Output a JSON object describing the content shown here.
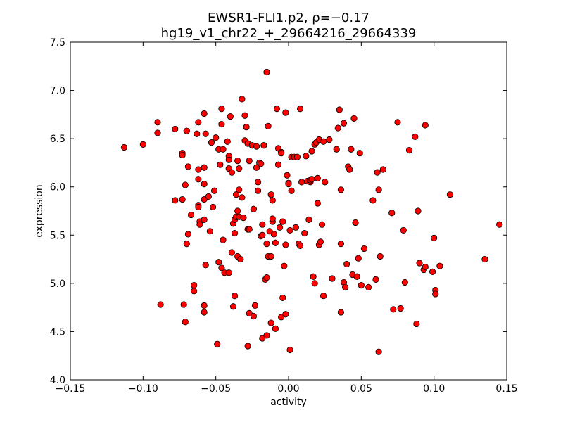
{
  "chart_data": {
    "type": "scatter",
    "title_line1": "EWSR1-FLI1.p2, ρ=−0.17",
    "title_line2": "hg19_v1_chr22_+_29664216_29664339",
    "xlabel": "activity",
    "ylabel": "expression",
    "xlim": [
      -0.15,
      0.15
    ],
    "ylim": [
      4.0,
      7.5
    ],
    "xticks": [
      -0.15,
      -0.1,
      -0.05,
      0.0,
      0.05,
      0.1,
      0.15
    ],
    "xtick_labels": [
      "−0.15",
      "−0.10",
      "−0.05",
      "0.00",
      "0.05",
      "0.10",
      "0.15"
    ],
    "yticks": [
      4.0,
      4.5,
      5.0,
      5.5,
      6.0,
      6.5,
      7.0,
      7.5
    ],
    "ytick_labels": [
      "4.0",
      "4.5",
      "5.0",
      "5.5",
      "6.0",
      "6.5",
      "7.0",
      "7.5"
    ],
    "grid": false,
    "marker_color": "#ff0000",
    "marker_edge": "#000000",
    "points": [
      [
        -0.113,
        6.41
      ],
      [
        -0.1,
        6.44
      ],
      [
        -0.09,
        6.67
      ],
      [
        -0.09,
        6.56
      ],
      [
        -0.088,
        4.78
      ],
      [
        -0.078,
        6.6
      ],
      [
        -0.078,
        5.86
      ],
      [
        -0.073,
        6.35
      ],
      [
        -0.073,
        6.33
      ],
      [
        -0.073,
        5.87
      ],
      [
        -0.072,
        4.78
      ],
      [
        -0.071,
        6.02
      ],
      [
        -0.071,
        4.6
      ],
      [
        -0.07,
        6.58
      ],
      [
        -0.07,
        5.41
      ],
      [
        -0.069,
        6.21
      ],
      [
        -0.069,
        5.51
      ],
      [
        -0.067,
        5.71
      ],
      [
        -0.065,
        4.98
      ],
      [
        -0.065,
        4.92
      ],
      [
        -0.063,
        6.55
      ],
      [
        -0.062,
        6.67
      ],
      [
        -0.062,
        6.18
      ],
      [
        -0.062,
        6.08
      ],
      [
        -0.062,
        5.81
      ],
      [
        -0.062,
        5.79
      ],
      [
        -0.061,
        5.64
      ],
      [
        -0.061,
        5.61
      ],
      [
        -0.058,
        6.76
      ],
      [
        -0.058,
        6.2
      ],
      [
        -0.058,
        6.03
      ],
      [
        -0.058,
        5.87
      ],
      [
        -0.058,
        5.66
      ],
      [
        -0.058,
        4.77
      ],
      [
        -0.058,
        4.7
      ],
      [
        -0.057,
        6.55
      ],
      [
        -0.057,
        5.19
      ],
      [
        -0.055,
        5.9
      ],
      [
        -0.054,
        5.54
      ],
      [
        -0.053,
        6.46
      ],
      [
        -0.052,
        5.79
      ],
      [
        -0.051,
        5.96
      ],
      [
        -0.05,
        6.51
      ],
      [
        -0.049,
        4.37
      ],
      [
        -0.048,
        6.39
      ],
      [
        -0.048,
        5.22
      ],
      [
        -0.047,
        6.23
      ],
      [
        -0.046,
        6.65
      ],
      [
        -0.046,
        5.16
      ],
      [
        -0.046,
        6.81
      ],
      [
        -0.045,
        6.39
      ],
      [
        -0.045,
        5.45
      ],
      [
        -0.044,
        5.11
      ],
      [
        -0.042,
        6.47
      ],
      [
        -0.041,
        6.32
      ],
      [
        -0.041,
        6.28
      ],
      [
        -0.041,
        6.19
      ],
      [
        -0.041,
        5.11
      ],
      [
        -0.04,
        6.73
      ],
      [
        -0.039,
        6.15
      ],
      [
        -0.039,
        5.32
      ],
      [
        -0.038,
        5.62
      ],
      [
        -0.038,
        4.76
      ],
      [
        -0.037,
        5.66
      ],
      [
        -0.037,
        5.52
      ],
      [
        -0.037,
        4.87
      ],
      [
        -0.036,
        5.92
      ],
      [
        -0.036,
        5.69
      ],
      [
        -0.035,
        5.75
      ],
      [
        -0.035,
        5.28
      ],
      [
        -0.035,
        6.27
      ],
      [
        -0.034,
        5.97
      ],
      [
        -0.034,
        6.19
      ],
      [
        -0.034,
        5.69
      ],
      [
        -0.033,
        5.25
      ],
      [
        -0.032,
        5.89
      ],
      [
        -0.032,
        6.91
      ],
      [
        -0.031,
        5.68
      ],
      [
        -0.03,
        6.48
      ],
      [
        -0.03,
        6.74
      ],
      [
        -0.029,
        6.62
      ],
      [
        -0.028,
        6.45
      ],
      [
        -0.028,
        4.35
      ],
      [
        -0.028,
        5.56
      ],
      [
        -0.027,
        6.27
      ],
      [
        -0.027,
        5.56
      ],
      [
        -0.027,
        4.69
      ],
      [
        -0.025,
        6.43
      ],
      [
        -0.024,
        4.66
      ],
      [
        -0.024,
        5.77
      ],
      [
        -0.023,
        4.77
      ],
      [
        -0.022,
        6.42
      ],
      [
        -0.022,
        6.2
      ],
      [
        -0.021,
        5.96
      ],
      [
        -0.021,
        6.05
      ],
      [
        -0.02,
        6.25
      ],
      [
        -0.019,
        6.24
      ],
      [
        -0.019,
        5.49
      ],
      [
        -0.018,
        5.61
      ],
      [
        -0.018,
        4.43
      ],
      [
        -0.018,
        5.5
      ],
      [
        -0.017,
        6.43
      ],
      [
        -0.016,
        5.04
      ],
      [
        -0.015,
        7.19
      ],
      [
        -0.015,
        5.06
      ],
      [
        -0.015,
        4.46
      ],
      [
        -0.015,
        5.41
      ],
      [
        -0.014,
        6.63
      ],
      [
        -0.014,
        5.28
      ],
      [
        -0.013,
        5.54
      ],
      [
        -0.012,
        5.92
      ],
      [
        -0.012,
        5.28
      ],
      [
        -0.012,
        4.59
      ],
      [
        -0.011,
        5.64
      ],
      [
        -0.011,
        5.67
      ],
      [
        -0.011,
        5.86
      ],
      [
        -0.01,
        5.51
      ],
      [
        -0.009,
        5.42
      ],
      [
        -0.009,
        4.53
      ],
      [
        -0.008,
        6.81
      ],
      [
        -0.007,
        6.4
      ],
      [
        -0.007,
        6.23
      ],
      [
        -0.006,
        5.58
      ],
      [
        -0.005,
        6.36
      ],
      [
        -0.005,
        4.65
      ],
      [
        -0.005,
        6.35
      ],
      [
        -0.004,
        4.85
      ],
      [
        -0.004,
        5.64
      ],
      [
        -0.003,
        5.18
      ],
      [
        -0.002,
        5.4
      ],
      [
        -0.002,
        4.68
      ],
      [
        -0.002,
        6.77
      ],
      [
        -0.001,
        6.12
      ],
      [
        0.0,
        6.04
      ],
      [
        0.0,
        6.03
      ],
      [
        0.001,
        5.55
      ],
      [
        0.001,
        4.31
      ],
      [
        0.002,
        6.31
      ],
      [
        0.002,
        5.96
      ],
      [
        0.004,
        6.31
      ],
      [
        0.005,
        5.58
      ],
      [
        0.006,
        6.31
      ],
      [
        0.007,
        5.41
      ],
      [
        0.008,
        6.81
      ],
      [
        0.008,
        5.39
      ],
      [
        0.009,
        6.05
      ],
      [
        0.011,
        5.52
      ],
      [
        0.012,
        6.32
      ],
      [
        0.013,
        6.06
      ],
      [
        0.014,
        5.66
      ],
      [
        0.015,
        6.05
      ],
      [
        0.015,
        6.07
      ],
      [
        0.016,
        6.37
      ],
      [
        0.016,
        6.08
      ],
      [
        0.017,
        5.07
      ],
      [
        0.018,
        5.0
      ],
      [
        0.018,
        6.44
      ],
      [
        0.019,
        6.46
      ],
      [
        0.02,
        5.83
      ],
      [
        0.02,
        6.09
      ],
      [
        0.021,
        5.4
      ],
      [
        0.021,
        6.49
      ],
      [
        0.022,
        5.43
      ],
      [
        0.023,
        5.61
      ],
      [
        0.024,
        4.87
      ],
      [
        0.024,
        6.47
      ],
      [
        0.025,
        6.05
      ],
      [
        0.028,
        6.49
      ],
      [
        0.03,
        5.05
      ],
      [
        0.033,
        6.39
      ],
      [
        0.034,
        6.61
      ],
      [
        0.035,
        6.8
      ],
      [
        0.036,
        5.97
      ],
      [
        0.036,
        4.7
      ],
      [
        0.036,
        5.41
      ],
      [
        0.038,
        6.66
      ],
      [
        0.038,
        5.01
      ],
      [
        0.039,
        4.96
      ],
      [
        0.04,
        5.2
      ],
      [
        0.041,
        6.21
      ],
      [
        0.042,
        6.18
      ],
      [
        0.043,
        6.39
      ],
      [
        0.044,
        5.09
      ],
      [
        0.045,
        6.71
      ],
      [
        0.046,
        5.63
      ],
      [
        0.047,
        5.07
      ],
      [
        0.048,
        5.26
      ],
      [
        0.049,
        6.35
      ],
      [
        0.05,
        4.98
      ],
      [
        0.052,
        5.36
      ],
      [
        0.055,
        4.96
      ],
      [
        0.058,
        5.86
      ],
      [
        0.06,
        5.04
      ],
      [
        0.061,
        6.15
      ],
      [
        0.062,
        5.97
      ],
      [
        0.062,
        4.29
      ],
      [
        0.063,
        5.28
      ],
      [
        0.065,
        6.18
      ],
      [
        0.071,
        5.73
      ],
      [
        0.072,
        4.73
      ],
      [
        0.075,
        6.67
      ],
      [
        0.077,
        4.74
      ],
      [
        0.079,
        5.55
      ],
      [
        0.08,
        5.01
      ],
      [
        0.083,
        6.38
      ],
      [
        0.087,
        6.52
      ],
      [
        0.088,
        4.58
      ],
      [
        0.089,
        5.75
      ],
      [
        0.09,
        5.21
      ],
      [
        0.093,
        5.14
      ],
      [
        0.094,
        6.64
      ],
      [
        0.094,
        5.17
      ],
      [
        0.099,
        5.12
      ],
      [
        0.1,
        5.47
      ],
      [
        0.101,
        4.93
      ],
      [
        0.101,
        4.89
      ],
      [
        0.104,
        5.18
      ],
      [
        0.111,
        5.92
      ],
      [
        0.135,
        5.25
      ],
      [
        0.145,
        5.61
      ]
    ]
  }
}
